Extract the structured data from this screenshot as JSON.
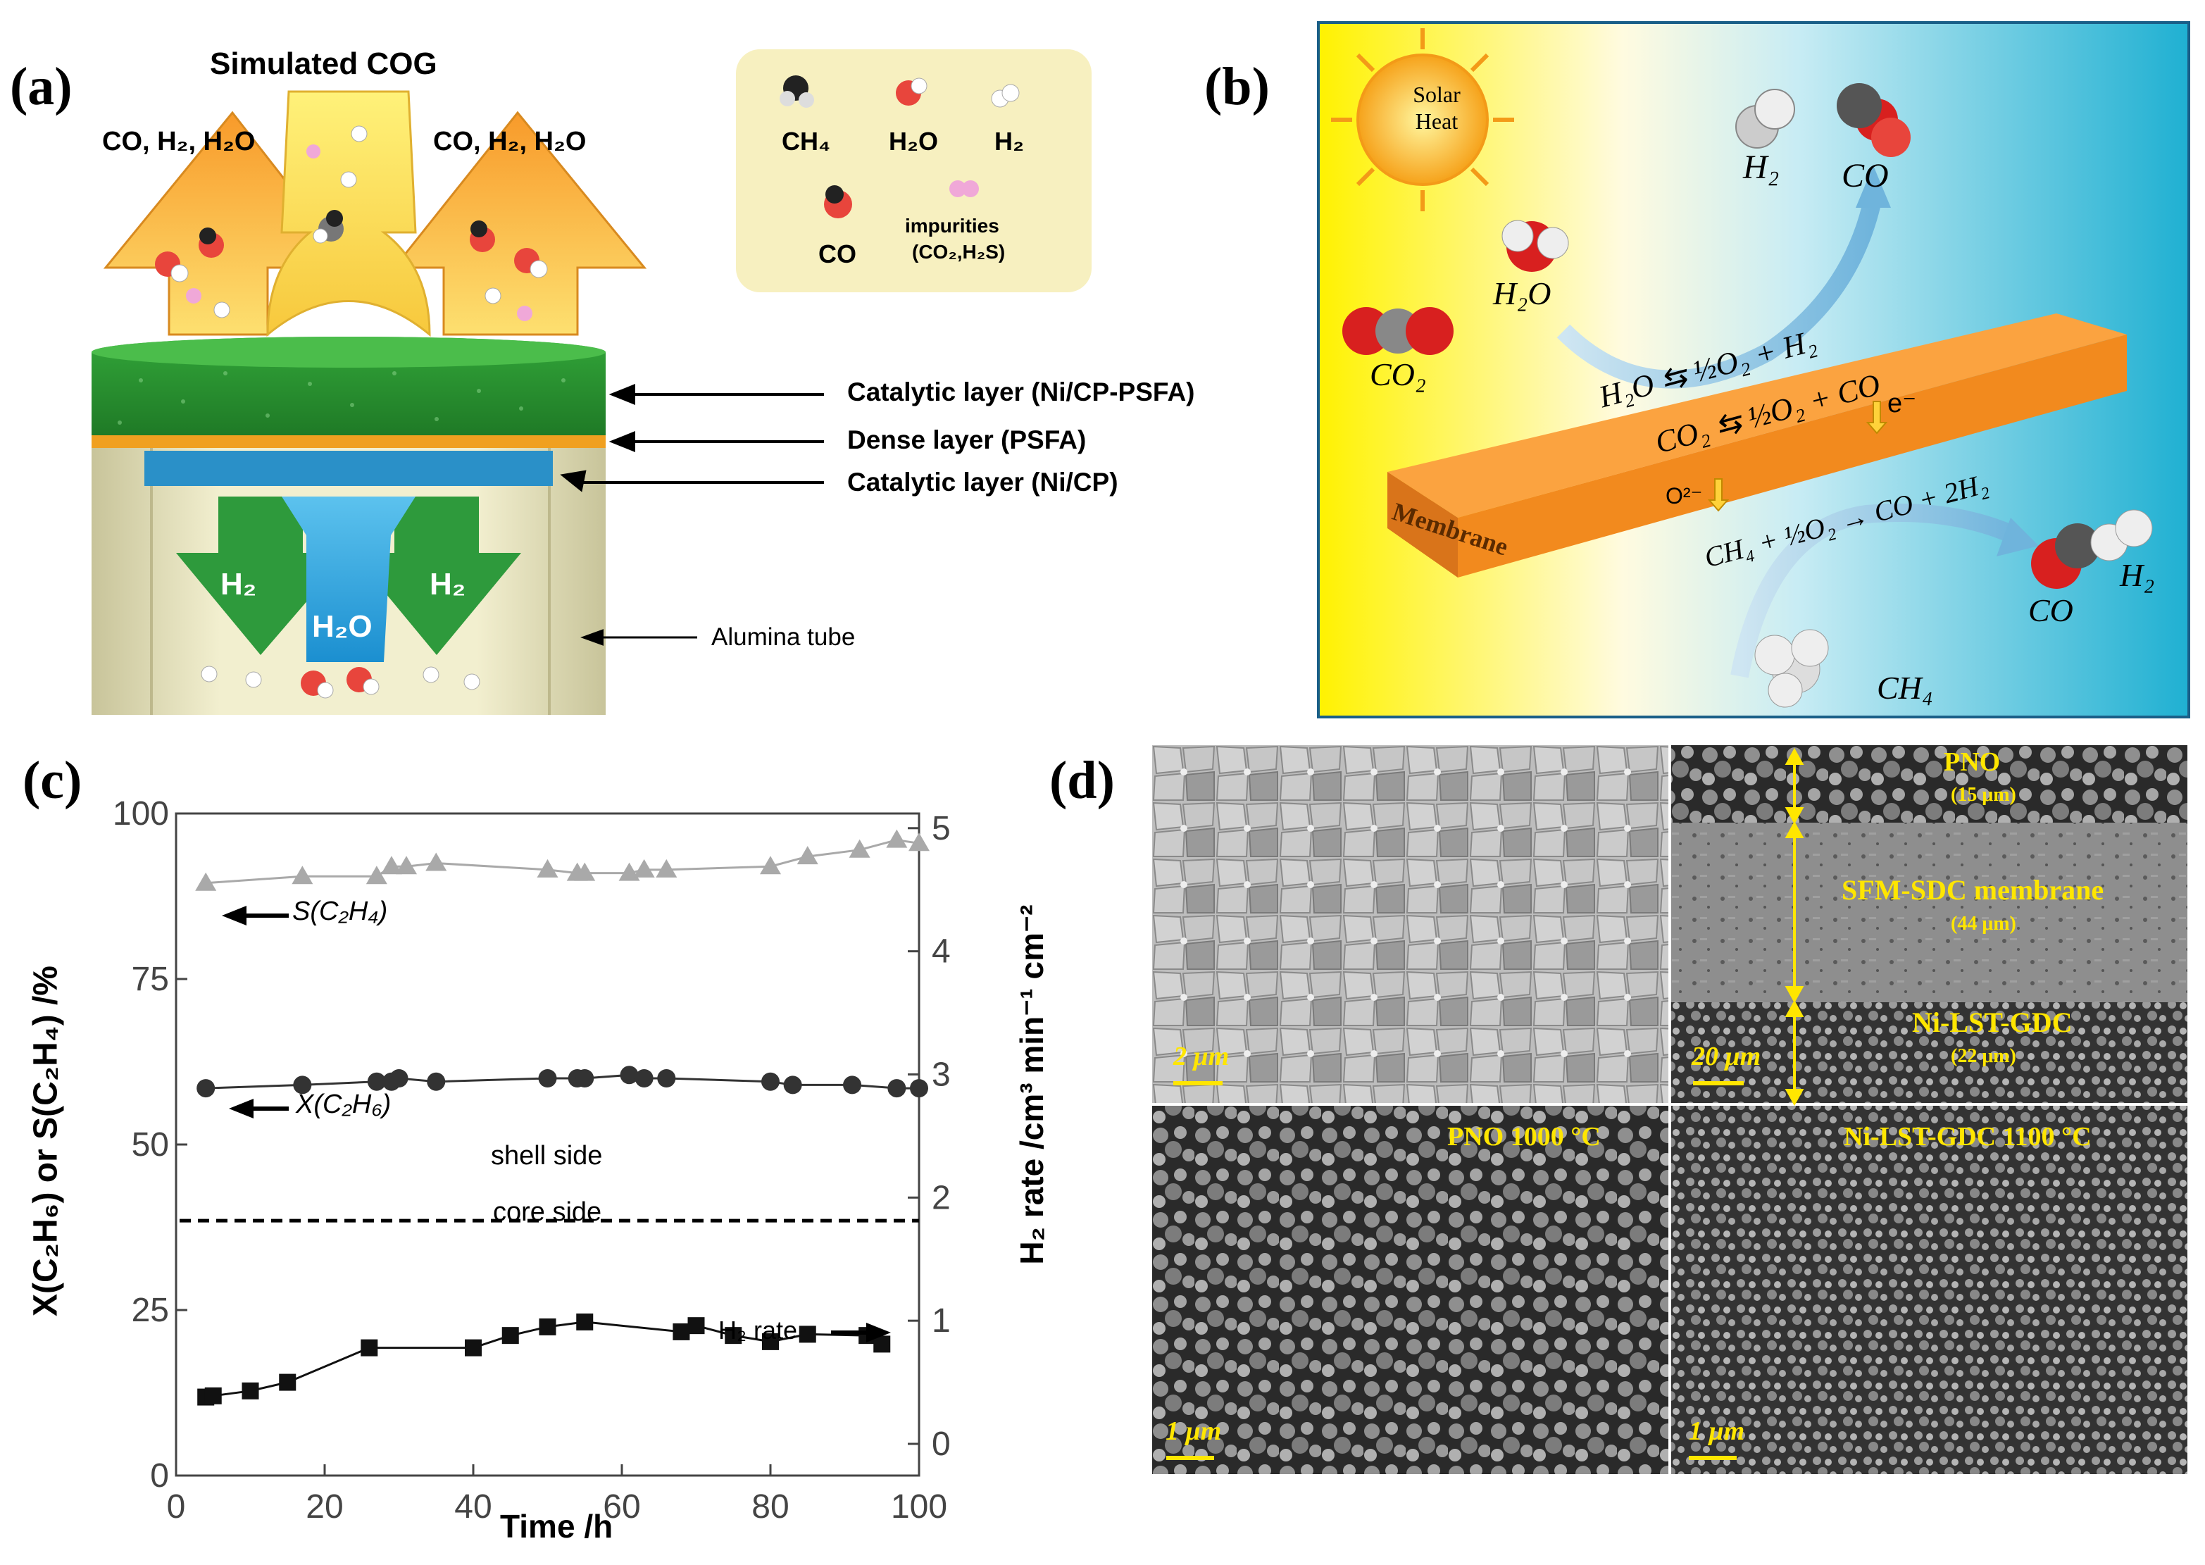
{
  "panels": {
    "a": {
      "letter": "(a)",
      "title": "Simulated COG",
      "left_flow": "CO, H₂, H₂O",
      "right_flow": "CO, H₂, H₂O",
      "legend": {
        "ch4": "CH₄",
        "h2o": "H₂O",
        "h2": "H₂",
        "co": "CO",
        "impurities": "impurities",
        "impurities_detail": "(CO₂,H₂S)"
      },
      "layer_labels": [
        "Catalytic layer (Ni/CP-PSFA)",
        "Dense layer (PSFA)",
        "Catalytic layer (Ni/CP)"
      ],
      "tube_label": "Alumina tube",
      "arrow_h2_left": "H₂",
      "arrow_h2o": "H₂O",
      "arrow_h2_right": "H₂",
      "colors": {
        "catalytic_top": "#2e8b2e",
        "dense": "#f0a020",
        "catalytic_bottom": "#2a90c8",
        "legend_bg": "#f7f0c0"
      }
    },
    "b": {
      "letter": "(b)",
      "sun": "Solar Heat",
      "h2_top": "H₂",
      "co_top": "CO",
      "h2o": "H₂O",
      "co2": "CO₂",
      "reaction1": "H₂O ⇆ ½O₂ + H₂",
      "reaction2": "CO₂ ⇆ ½O₂ + CO",
      "electron": "e⁻",
      "oxygen_ion": "O²⁻",
      "reaction3": "CH₄ + ½O₂ → CO + 2H₂",
      "membrane": "Membrane",
      "co_bottom": "CO",
      "h2_bottom": "H₂",
      "ch4": "CH₄",
      "colors": {
        "membrane": "#f28a1e",
        "sky_left": "#fff200",
        "sky_right": "#2eb7d6"
      }
    },
    "c": {
      "letter": "(c)",
      "labels": {
        "s_arrow": "S(C₂H₄)",
        "x_arrow": "X(C₂H₆)",
        "shell": "shell side",
        "core": "core side",
        "h2_arrow": "H₂ rate"
      }
    },
    "d": {
      "letter": "(d)",
      "cross_section": {
        "pno": "PNO",
        "pno_thickness": "(15 μm)",
        "membrane": "SFM-SDC membrane",
        "membrane_thickness": "(44 μm)",
        "anode": "Ni-LST-GDC",
        "anode_thickness": "(22 μm)"
      },
      "scale_surface": "2 μm",
      "scale_cross": "20 μm",
      "scale_pno": "1 μm",
      "scale_anode": "1 μm",
      "pno_label": "PNO 1000 °C",
      "anode_label": "Ni-LST-GDC 1100 °C",
      "colors": {
        "label": "#ffe600"
      }
    }
  },
  "chart_data": {
    "type": "scatter",
    "xlabel": "Time /h",
    "ylabel_left": "X(C₂H₆) or S(C₂H₄) /%",
    "ylabel_right": "H₂ rate /cm³ min⁻¹ cm⁻²",
    "xlim": [
      0,
      100
    ],
    "ylim_left": [
      0,
      100
    ],
    "ylim_right": [
      0,
      5
    ],
    "x_ticks": [
      "0",
      "20",
      "40",
      "60",
      "80",
      "100"
    ],
    "y_left_ticks": [
      "0",
      "25",
      "50",
      "75",
      "100"
    ],
    "y_right_ticks": [
      "0",
      "1",
      "2",
      "3",
      "4",
      "5"
    ],
    "divider_y_left": 38.5,
    "series": [
      {
        "marker": "triangle",
        "color": "#a9a9a9",
        "axis": "left",
        "x": [
          4,
          17,
          27,
          29,
          31,
          35,
          50,
          54,
          55,
          61,
          63,
          66,
          80,
          85,
          92,
          97,
          100
        ],
        "y": [
          89.5,
          90.5,
          90.5,
          92,
          92,
          92.5,
          91.5,
          91,
          91,
          91,
          91.5,
          91.5,
          92,
          93.5,
          94.5,
          96,
          95.5
        ]
      },
      {
        "marker": "circle",
        "color": "#333333",
        "axis": "left",
        "x": [
          4,
          17,
          27,
          29,
          30,
          35,
          50,
          54,
          55,
          61,
          63,
          66,
          80,
          83,
          91,
          97,
          100
        ],
        "y": [
          58.5,
          59,
          59.5,
          59.5,
          60,
          59.5,
          60,
          60,
          60,
          60.5,
          60,
          60,
          59.5,
          59,
          59,
          58.5,
          58.5
        ]
      },
      {
        "marker": "square",
        "color": "#111111",
        "axis": "right",
        "x": [
          4,
          5,
          10,
          15,
          26,
          40,
          45,
          50,
          55,
          68,
          70,
          75,
          80,
          85,
          93,
          95
        ],
        "y": [
          0.38,
          0.39,
          0.43,
          0.5,
          0.78,
          0.78,
          0.88,
          0.95,
          0.99,
          0.91,
          0.96,
          0.88,
          0.83,
          0.89,
          0.88,
          0.81
        ]
      }
    ]
  }
}
